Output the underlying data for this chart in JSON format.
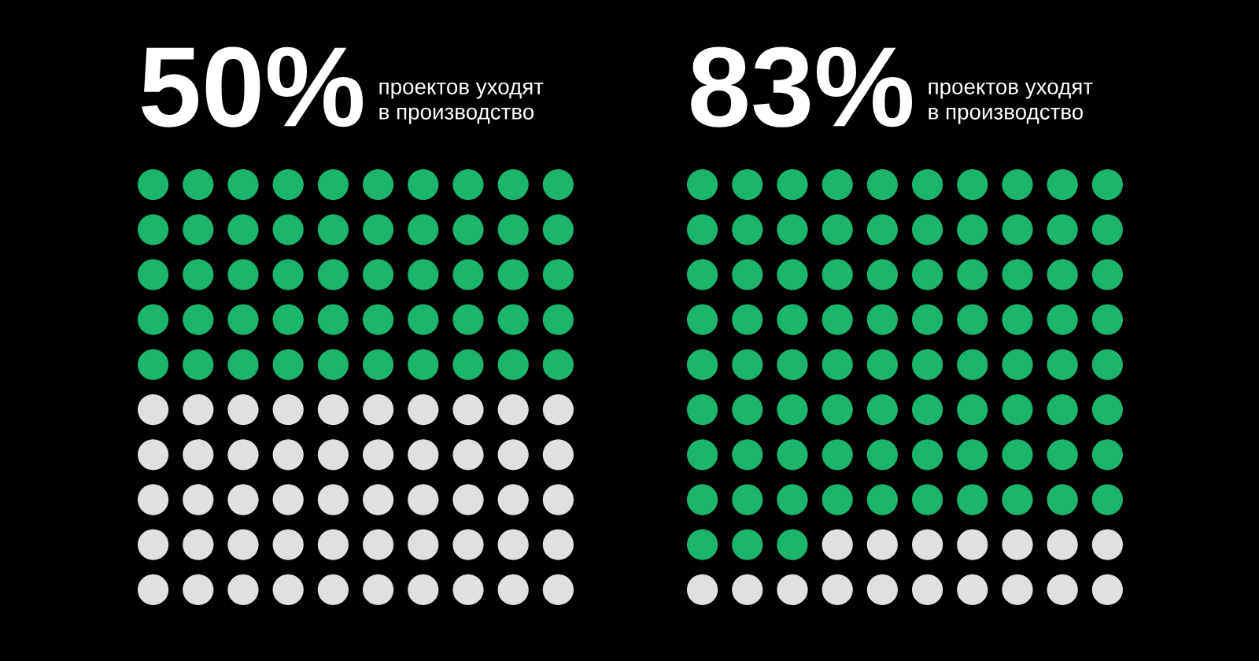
{
  "chart_data": [
    {
      "type": "other",
      "subtitle": "проектов уходят\nв производство",
      "categories": [
        null
      ],
      "values": [
        50
      ],
      "value_labels": [
        "50%"
      ],
      "color": "#1db46c"
    },
    {
      "type": "other",
      "subtitle": "проектов уходят\nв производство",
      "categories": [
        null
      ],
      "values": [
        83
      ],
      "value_labels": [
        "83%"
      ],
      "color": "#1db46c"
    }
  ]
}
